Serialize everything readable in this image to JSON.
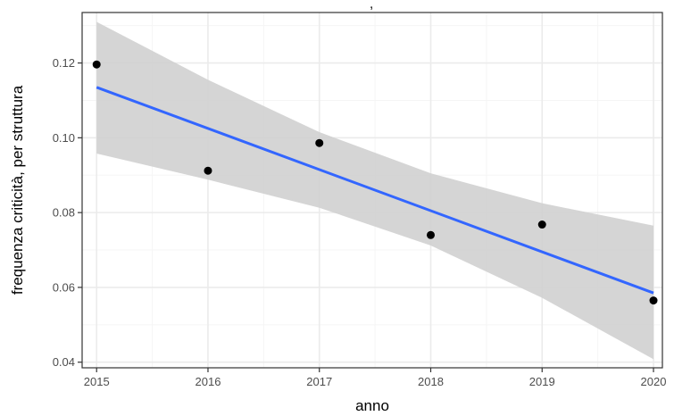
{
  "chart_data": {
    "type": "scatter",
    "title_fragment": ",",
    "xlabel": "anno",
    "ylabel": "frequenza criticità, per struttura",
    "xlim": [
      2014.87,
      2020.08
    ],
    "ylim": [
      0.0385,
      0.1335
    ],
    "x_ticks": [
      2015,
      2016,
      2017,
      2018,
      2019,
      2020
    ],
    "y_ticks": [
      0.04,
      0.06,
      0.08,
      0.1,
      0.12
    ],
    "y_tick_labels": [
      "0.04",
      "0.06",
      "0.08",
      "0.10",
      "0.12"
    ],
    "x_tick_labels": [
      "2015",
      "2016",
      "2017",
      "2018",
      "2019",
      "2020"
    ],
    "grid": true,
    "points": [
      {
        "x": 2015,
        "y": 0.1196
      },
      {
        "x": 2016,
        "y": 0.0912
      },
      {
        "x": 2017,
        "y": 0.0986
      },
      {
        "x": 2018,
        "y": 0.074
      },
      {
        "x": 2019,
        "y": 0.0768
      },
      {
        "x": 2020,
        "y": 0.0565
      }
    ],
    "trend_line": {
      "x": [
        2015,
        2020
      ],
      "y": [
        0.1135,
        0.0585
      ]
    },
    "confidence_band": {
      "x": [
        2015,
        2016,
        2017,
        2018,
        2019,
        2020
      ],
      "upper": [
        0.131,
        0.1155,
        0.1015,
        0.0905,
        0.0825,
        0.0765
      ],
      "lower": [
        0.0958,
        0.0888,
        0.0813,
        0.0712,
        0.0572,
        0.0408
      ]
    },
    "colors": {
      "points": "#000000",
      "trend_line": "#3366ff",
      "band": "#d0d0d0",
      "grid_major": "#ebebeb",
      "grid_minor": "#f5f5f5",
      "panel_border": "#333333"
    }
  }
}
